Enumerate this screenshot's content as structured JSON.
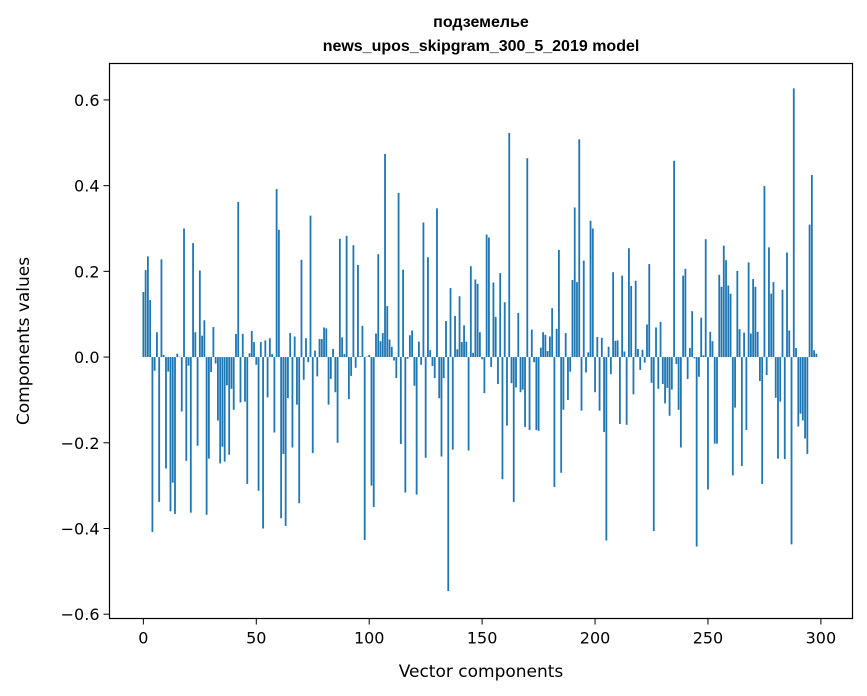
{
  "chart_data": {
    "type": "bar",
    "title_line1": "подземелье",
    "title_line2": "news_upos_skipgram_300_5_2019 model",
    "xlabel": "Vector components",
    "ylabel": "Components values",
    "xlim": [
      -15,
      314
    ],
    "ylim": [
      -0.61,
      0.685
    ],
    "xticks": [
      0,
      50,
      100,
      150,
      200,
      250,
      300
    ],
    "yticks": [
      -0.6,
      -0.4,
      -0.2,
      0.0,
      0.2,
      0.4,
      0.6
    ],
    "xtick_labels": [
      "0",
      "50",
      "100",
      "150",
      "200",
      "250",
      "300"
    ],
    "ytick_labels": [
      "−0.6",
      "−0.4",
      "−0.2",
      "0.0",
      "0.2",
      "0.4",
      "0.6"
    ],
    "bar_color": "#1f77b4",
    "grid": false,
    "legend": "none",
    "values": [
      0.152,
      0.203,
      0.235,
      0.133,
      -0.408,
      -0.032,
      0.058,
      -0.338,
      0.228,
      0.005,
      -0.26,
      -0.034,
      -0.36,
      -0.293,
      -0.366,
      0.008,
      0.001,
      -0.127,
      0.3,
      -0.242,
      -0.02,
      -0.363,
      0.266,
      0.058,
      -0.207,
      0.202,
      0.05,
      0.086,
      -0.368,
      -0.237,
      -0.035,
      0.07,
      -0.015,
      -0.148,
      -0.248,
      -0.209,
      -0.244,
      -0.066,
      -0.228,
      -0.074,
      -0.123,
      0.054,
      0.362,
      -0.106,
      0.054,
      -0.104,
      -0.296,
      0.009,
      0.061,
      0.035,
      -0.018,
      -0.312,
      0.035,
      -0.4,
      0.039,
      -0.094,
      0.044,
      0.007,
      -0.176,
      0.392,
      0.297,
      -0.376,
      -0.226,
      -0.394,
      -0.096,
      0.056,
      -0.211,
      0.048,
      -0.111,
      -0.341,
      0.227,
      -0.053,
      0.044,
      -0.012,
      0.33,
      -0.224,
      0.015,
      -0.045,
      0.042,
      0.042,
      0.069,
      0.067,
      -0.111,
      -0.051,
      0.019,
      -0.082,
      -0.2,
      0.276,
      0.046,
      0.007,
      0.283,
      -0.098,
      -0.044,
      0.261,
      -0.025,
      0.215,
      0.002,
      0.073,
      -0.427,
      0.001,
      0.005,
      -0.3,
      -0.35,
      0.055,
      0.24,
      0.037,
      0.056,
      0.474,
      0.119,
      0.041,
      0.024,
      -0.008,
      -0.049,
      0.383,
      -0.203,
      0.204,
      -0.316,
      -0.004,
      0.051,
      0.062,
      -0.067,
      -0.321,
      0.036,
      -0.018,
      0.314,
      -0.235,
      0.233,
      0.016,
      -0.021,
      -0.049,
      0.347,
      -0.096,
      -0.232,
      -0.049,
      0.084,
      -0.546,
      0.161,
      -0.216,
      0.096,
      0.018,
      0.142,
      0.035,
      0.074,
      0.036,
      -0.218,
      0.212,
      0.01,
      0.181,
      0.171,
      0.058,
      -0.005,
      -0.084,
      0.286,
      0.279,
      -0.023,
      0.174,
      0.094,
      -0.063,
      0.196,
      -0.285,
      0.128,
      -0.16,
      0.523,
      -0.061,
      -0.338,
      -0.071,
      0.103,
      -0.082,
      -0.076,
      -0.163,
      0.464,
      -0.17,
      0.064,
      -0.012,
      -0.17,
      -0.172,
      0.022,
      0.058,
      0.052,
      0.014,
      0.048,
      0.114,
      -0.303,
      0.066,
      0.25,
      -0.27,
      -0.123,
      0.056,
      -0.1,
      -0.034,
      0.18,
      0.349,
      0.175,
      0.508,
      -0.125,
      0.225,
      -0.036,
      0.011,
      0.318,
      0.3,
      -0.082,
      0.047,
      -0.125,
      0.045,
      -0.175,
      -0.428,
      0.024,
      -0.04,
      0.198,
      0.038,
      0.039,
      -0.156,
      0.19,
      0.013,
      -0.158,
      0.254,
      0.166,
      -0.087,
      0.178,
      0.019,
      -0.03,
      0.017,
      -0.013,
      0.076,
      0.217,
      -0.06,
      -0.406,
      0.069,
      -0.074,
      0.082,
      -0.063,
      -0.108,
      -0.072,
      -0.137,
      -0.076,
      0.458,
      -0.016,
      -0.123,
      -0.211,
      0.19,
      0.206,
      -0.051,
      0.021,
      0.107,
      -0.003,
      -0.442,
      -0.046,
      0.092,
      0.004,
      0.275,
      -0.309,
      0.059,
      0.037,
      -0.202,
      -0.202,
      0.192,
      0.164,
      0.26,
      0.226,
      0.167,
      0.148,
      -0.276,
      -0.118,
      0.201,
      0.065,
      -0.254,
      0.057,
      -0.17,
      0.221,
      0.055,
      0.182,
      0.164,
      0.059,
      -0.056,
      -0.296,
      0.399,
      -0.042,
      0.256,
      0.148,
      0.175,
      -0.095,
      -0.237,
      -0.104,
      0.157,
      -0.238,
      0.244,
      0.062,
      -0.437,
      0.627,
      0.021,
      -0.162,
      -0.132,
      -0.148,
      -0.19,
      -0.226,
      0.309,
      0.425,
      0.016,
      0.008
    ]
  }
}
